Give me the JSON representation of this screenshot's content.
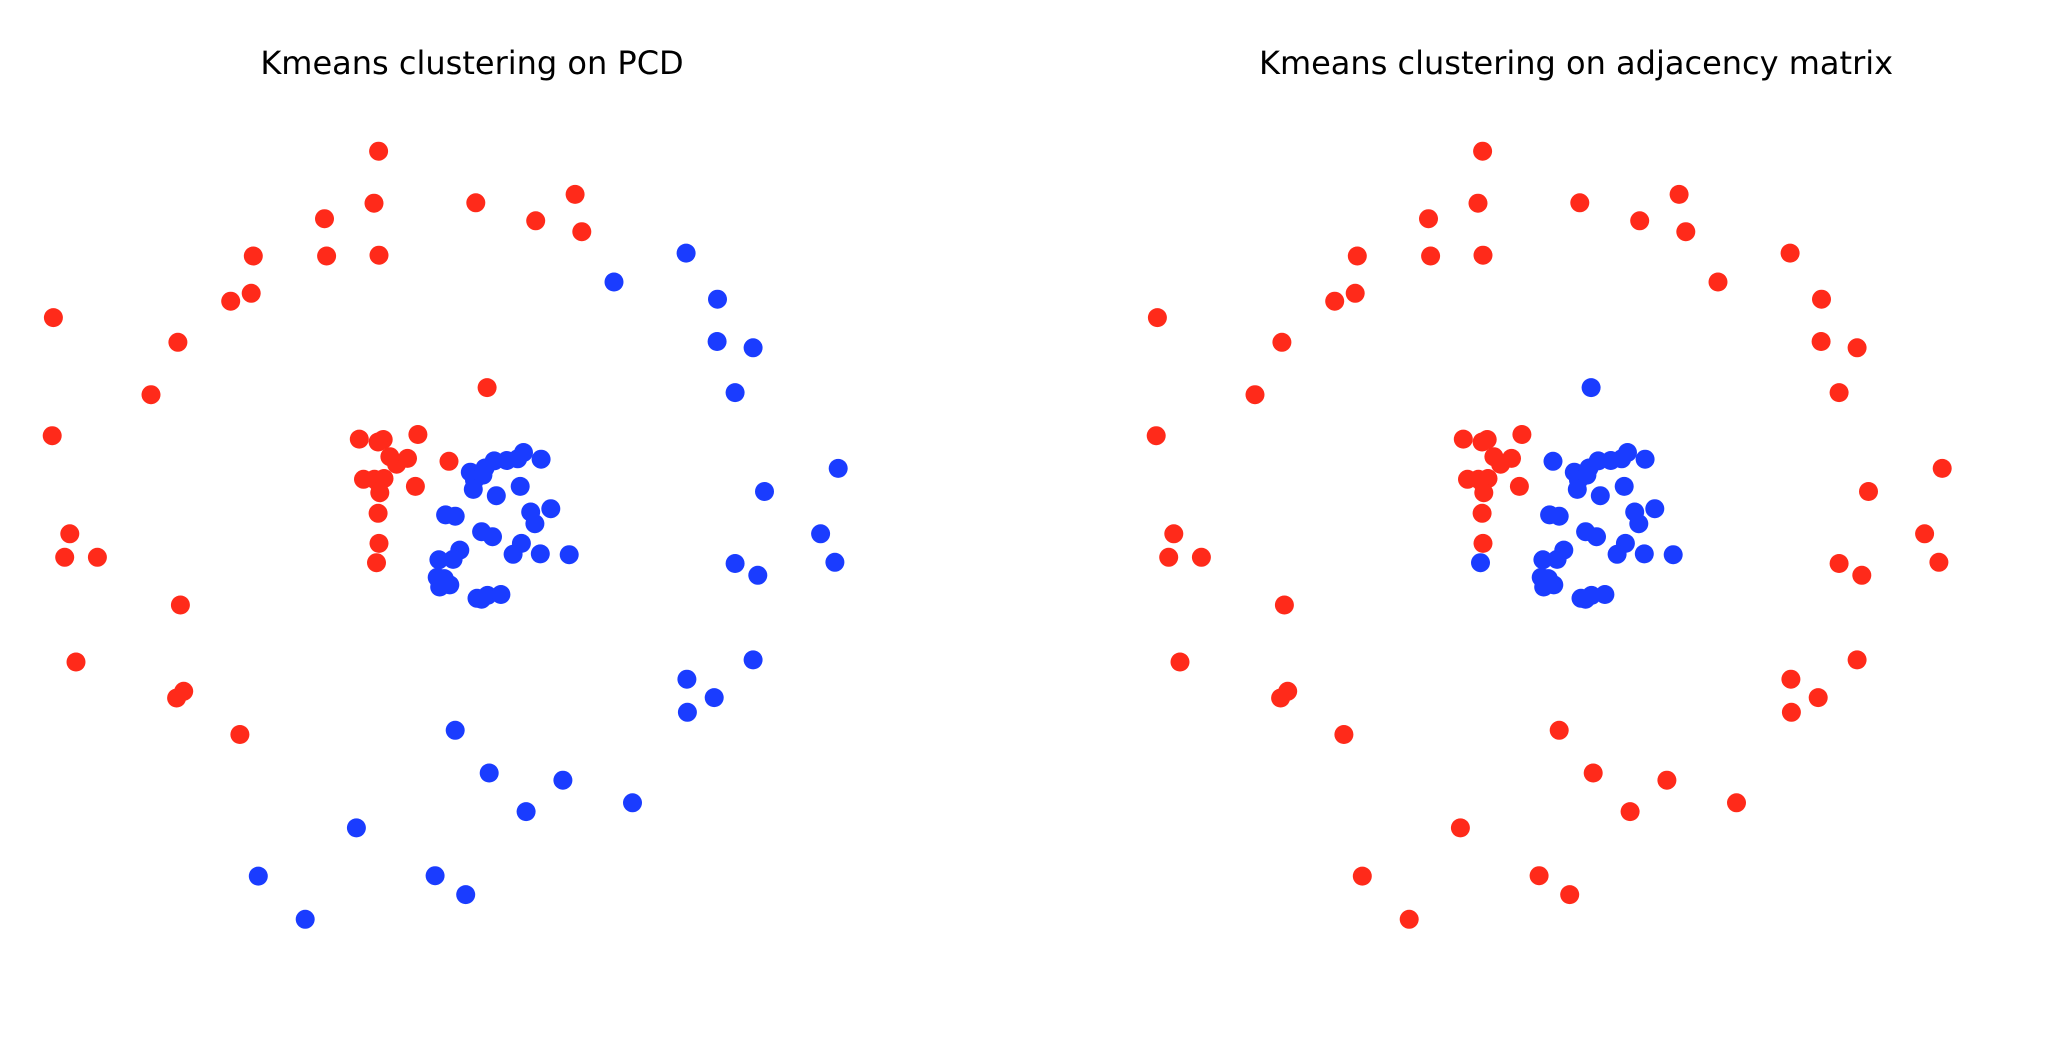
{
  "colors": {
    "red": "#ff2a1a",
    "blue": "#1a3cff"
  },
  "chart_data": [
    {
      "type": "scatter",
      "title": "Kmeans clustering on PCD",
      "axes_visible": false,
      "xlim": [
        -1.1,
        1.1
      ],
      "ylim": [
        -1.1,
        1.1
      ],
      "series": [
        {
          "color": "red",
          "points": [
            [
              -0.223,
              0.966
            ],
            [
              -0.234,
              0.842
            ],
            [
              -0.222,
              0.718
            ],
            [
              -0.352,
              0.805
            ],
            [
              -0.347,
              0.716
            ],
            [
              -0.522,
              0.716
            ],
            [
              -0.527,
              0.627
            ],
            [
              -0.576,
              0.608
            ],
            [
              -0.999,
              0.569
            ],
            [
              -0.702,
              0.51
            ],
            [
              -0.766,
              0.385
            ],
            [
              -1.002,
              0.287
            ],
            [
              -0.96,
              0.053
            ],
            [
              -0.972,
              -0.003
            ],
            [
              -0.894,
              -0.003
            ],
            [
              -0.696,
              -0.117
            ],
            [
              -0.945,
              -0.253
            ],
            [
              -0.688,
              -0.323
            ],
            [
              -0.705,
              -0.339
            ],
            [
              -0.554,
              -0.426
            ],
            [
              0.009,
              0.843
            ],
            [
              0.152,
              0.8
            ],
            [
              0.246,
              0.863
            ],
            [
              0.262,
              0.774
            ],
            [
              0.036,
              0.402
            ],
            [
              -0.129,
              0.29
            ],
            [
              -0.212,
              0.278
            ],
            [
              -0.224,
              0.272
            ],
            [
              -0.269,
              0.279
            ],
            [
              -0.154,
              0.233
            ],
            [
              -0.18,
              0.219
            ],
            [
              -0.196,
              0.237
            ],
            [
              -0.233,
              0.183
            ],
            [
              -0.223,
              0.174
            ],
            [
              -0.259,
              0.183
            ],
            [
              -0.21,
              0.185
            ],
            [
              -0.22,
              0.151
            ],
            [
              -0.135,
              0.166
            ],
            [
              -0.224,
              0.102
            ],
            [
              -0.222,
              0.03
            ],
            [
              -0.228,
              -0.016
            ],
            [
              -0.055,
              0.226
            ]
          ]
        },
        {
          "color": "blue",
          "points": [
            [
              0.511,
              0.723
            ],
            [
              0.339,
              0.654
            ],
            [
              0.586,
              0.613
            ],
            [
              0.585,
              0.512
            ],
            [
              0.671,
              0.497
            ],
            [
              0.628,
              0.39
            ],
            [
              0.698,
              0.154
            ],
            [
              0.874,
              0.209
            ],
            [
              0.832,
              0.053
            ],
            [
              0.866,
              -0.015
            ],
            [
              0.628,
              -0.018
            ],
            [
              0.682,
              -0.046
            ],
            [
              0.671,
              -0.248
            ],
            [
              0.513,
              -0.294
            ],
            [
              0.578,
              -0.338
            ],
            [
              0.514,
              -0.373
            ],
            [
              -0.04,
              -0.416
            ],
            [
              0.041,
              -0.518
            ],
            [
              0.129,
              -0.61
            ],
            [
              0.217,
              -0.535
            ],
            [
              0.383,
              -0.589
            ],
            [
              -0.276,
              -0.649
            ],
            [
              -0.51,
              -0.764
            ],
            [
              -0.398,
              -0.867
            ],
            [
              -0.088,
              -0.763
            ],
            [
              -0.015,
              -0.808
            ],
            [
              -0.004,
              0.2
            ],
            [
              0.031,
              0.21
            ],
            [
              0.053,
              0.227
            ],
            [
              0.083,
              0.228
            ],
            [
              0.109,
              0.232
            ],
            [
              0.123,
              0.247
            ],
            [
              0.165,
              0.231
            ],
            [
              0.006,
              0.181
            ],
            [
              0.026,
              0.193
            ],
            [
              0.115,
              0.166
            ],
            [
              0.003,
              0.159
            ],
            [
              0.058,
              0.144
            ],
            [
              0.14,
              0.105
            ],
            [
              0.188,
              0.113
            ],
            [
              -0.063,
              0.098
            ],
            [
              -0.04,
              0.095
            ],
            [
              0.15,
              0.077
            ],
            [
              0.023,
              0.058
            ],
            [
              0.049,
              0.046
            ],
            [
              0.118,
              0.03
            ],
            [
              -0.029,
              0.014
            ],
            [
              0.098,
              0.004
            ],
            [
              0.163,
              0.005
            ],
            [
              0.232,
              0.003
            ],
            [
              -0.079,
              -0.009
            ],
            [
              -0.045,
              -0.008
            ],
            [
              -0.066,
              -0.054
            ],
            [
              -0.053,
              -0.069
            ],
            [
              -0.077,
              -0.074
            ],
            [
              -0.083,
              -0.051
            ],
            [
              0.012,
              -0.101
            ],
            [
              0.037,
              -0.094
            ],
            [
              0.069,
              -0.092
            ],
            [
              0.023,
              -0.103
            ]
          ]
        }
      ]
    },
    {
      "type": "scatter",
      "title": "Kmeans clustering on adjacency matrix",
      "axes_visible": false,
      "xlim": [
        -1.1,
        1.1
      ],
      "ylim": [
        -1.1,
        1.1
      ],
      "series": [
        {
          "color": "red",
          "points": [
            [
              -0.223,
              0.966
            ],
            [
              -0.234,
              0.842
            ],
            [
              -0.222,
              0.718
            ],
            [
              -0.352,
              0.805
            ],
            [
              -0.347,
              0.716
            ],
            [
              -0.522,
              0.716
            ],
            [
              -0.527,
              0.627
            ],
            [
              -0.576,
              0.608
            ],
            [
              -0.999,
              0.569
            ],
            [
              -0.702,
              0.51
            ],
            [
              -0.766,
              0.385
            ],
            [
              -1.002,
              0.287
            ],
            [
              -0.96,
              0.053
            ],
            [
              -0.972,
              -0.003
            ],
            [
              -0.894,
              -0.003
            ],
            [
              -0.696,
              -0.117
            ],
            [
              -0.945,
              -0.253
            ],
            [
              -0.688,
              -0.323
            ],
            [
              -0.705,
              -0.339
            ],
            [
              -0.554,
              -0.426
            ],
            [
              0.009,
              0.843
            ],
            [
              0.152,
              0.8
            ],
            [
              0.246,
              0.863
            ],
            [
              0.262,
              0.774
            ],
            [
              0.511,
              0.723
            ],
            [
              0.339,
              0.654
            ],
            [
              0.586,
              0.613
            ],
            [
              0.585,
              0.512
            ],
            [
              0.671,
              0.497
            ],
            [
              0.628,
              0.39
            ],
            [
              0.698,
              0.154
            ],
            [
              0.874,
              0.209
            ],
            [
              0.832,
              0.053
            ],
            [
              0.866,
              -0.015
            ],
            [
              0.628,
              -0.018
            ],
            [
              0.682,
              -0.046
            ],
            [
              0.671,
              -0.248
            ],
            [
              0.513,
              -0.294
            ],
            [
              0.578,
              -0.338
            ],
            [
              0.514,
              -0.373
            ],
            [
              -0.04,
              -0.416
            ],
            [
              0.041,
              -0.518
            ],
            [
              0.129,
              -0.61
            ],
            [
              0.217,
              -0.535
            ],
            [
              0.383,
              -0.589
            ],
            [
              -0.276,
              -0.649
            ],
            [
              -0.51,
              -0.764
            ],
            [
              -0.398,
              -0.867
            ],
            [
              -0.088,
              -0.763
            ],
            [
              -0.015,
              -0.808
            ],
            [
              -0.129,
              0.29
            ],
            [
              -0.212,
              0.278
            ],
            [
              -0.224,
              0.272
            ],
            [
              -0.269,
              0.279
            ],
            [
              -0.154,
              0.233
            ],
            [
              -0.18,
              0.219
            ],
            [
              -0.196,
              0.237
            ],
            [
              -0.233,
              0.183
            ],
            [
              -0.223,
              0.174
            ],
            [
              -0.259,
              0.183
            ],
            [
              -0.21,
              0.185
            ],
            [
              -0.22,
              0.151
            ],
            [
              -0.135,
              0.166
            ],
            [
              -0.224,
              0.102
            ],
            [
              -0.222,
              0.03
            ]
          ]
        },
        {
          "color": "blue",
          "points": [
            [
              0.036,
              0.402
            ],
            [
              -0.055,
              0.226
            ],
            [
              -0.228,
              -0.016
            ],
            [
              -0.004,
              0.2
            ],
            [
              0.031,
              0.21
            ],
            [
              0.053,
              0.227
            ],
            [
              0.083,
              0.228
            ],
            [
              0.109,
              0.232
            ],
            [
              0.123,
              0.247
            ],
            [
              0.165,
              0.231
            ],
            [
              0.006,
              0.181
            ],
            [
              0.026,
              0.193
            ],
            [
              0.115,
              0.166
            ],
            [
              0.003,
              0.159
            ],
            [
              0.058,
              0.144
            ],
            [
              0.14,
              0.105
            ],
            [
              0.188,
              0.113
            ],
            [
              -0.063,
              0.098
            ],
            [
              -0.04,
              0.095
            ],
            [
              0.15,
              0.077
            ],
            [
              0.023,
              0.058
            ],
            [
              0.049,
              0.046
            ],
            [
              0.118,
              0.03
            ],
            [
              -0.029,
              0.014
            ],
            [
              0.098,
              0.004
            ],
            [
              0.163,
              0.005
            ],
            [
              0.232,
              0.003
            ],
            [
              -0.079,
              -0.009
            ],
            [
              -0.045,
              -0.008
            ],
            [
              -0.066,
              -0.054
            ],
            [
              -0.053,
              -0.069
            ],
            [
              -0.077,
              -0.074
            ],
            [
              -0.083,
              -0.051
            ],
            [
              0.012,
              -0.101
            ],
            [
              0.037,
              -0.094
            ],
            [
              0.069,
              -0.092
            ],
            [
              0.023,
              -0.103
            ]
          ]
        }
      ]
    }
  ]
}
